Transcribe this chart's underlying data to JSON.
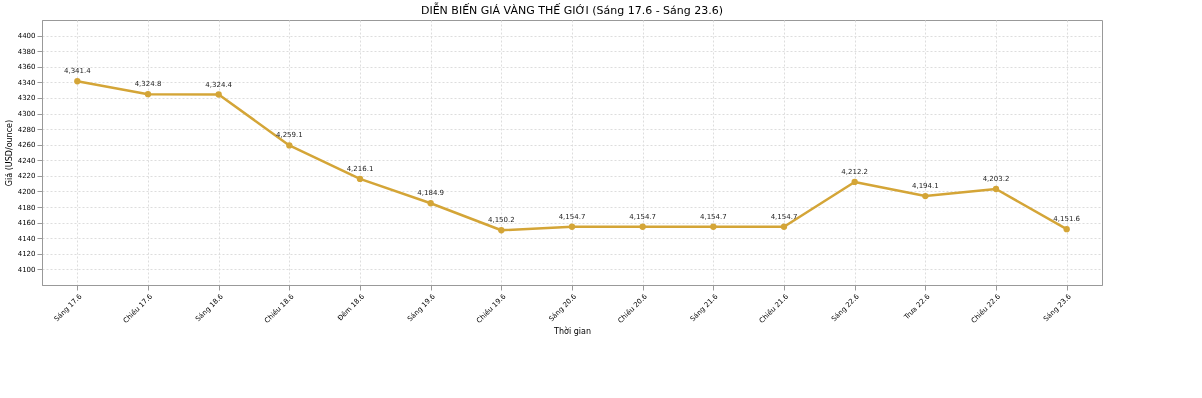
{
  "chart_data": {
    "type": "line",
    "title": "DIỄN BIẾN GIÁ VÀNG THẾ GIỚI (Sáng 17.6 - Sáng 23.6)",
    "xlabel": "Thời gian",
    "ylabel": "Giá (USD/ounce)",
    "categories": [
      "Sáng 17.6",
      "Chiều 17.6",
      "Sáng 18.6",
      "Chiều 18.6",
      "Đêm 18.6",
      "Sáng 19.6",
      "Chiều 19.6",
      "Sáng 20.6",
      "Chiều 20.6",
      "Sáng 21.6",
      "Chiều 21.6",
      "Sáng 22.6",
      "Trưa 22.6",
      "Chiều 22.6",
      "Sáng 23.6"
    ],
    "series": [
      {
        "color": "#d4a537",
        "values": [
          4341.4,
          4324.8,
          4324.4,
          4259.1,
          4216.1,
          4184.9,
          4150.2,
          4154.7,
          4154.7,
          4154.7,
          4154.7,
          4212.2,
          4194.1,
          4203.2,
          4151.6
        ]
      }
    ],
    "ylim": [
      4080,
      4420
    ],
    "yticks": [
      4100,
      4120,
      4140,
      4160,
      4180,
      4200,
      4220,
      4240,
      4260,
      4280,
      4300,
      4320,
      4340,
      4360,
      4380,
      4400
    ],
    "value_labels": [
      "4,341.4",
      "4,324.8",
      "4,324.4",
      "4,259.1",
      "4,216.1",
      "4,184.9",
      "4,150.2",
      "4,154.7",
      "4,154.7",
      "4,154.7",
      "4,154.7",
      "4,212.2",
      "4,194.1",
      "4,203.2",
      "4,151.6"
    ],
    "grid": true,
    "marker": "circle",
    "line_style": "solid"
  }
}
